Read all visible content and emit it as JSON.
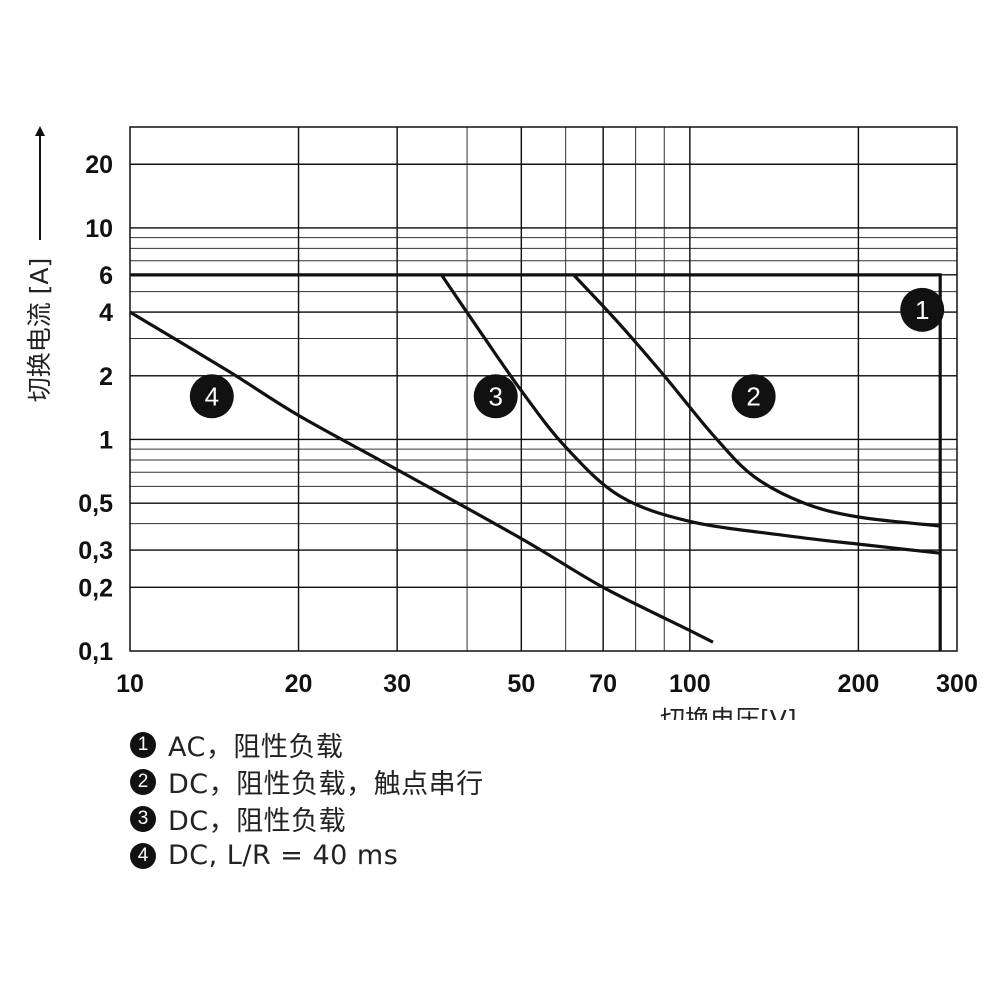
{
  "chart_data": {
    "type": "line",
    "xlabel": "切换电压[V]",
    "ylabel": "切换电流 [A]",
    "x_scale": "log",
    "y_scale": "log",
    "xlim": [
      10,
      300
    ],
    "ylim": [
      0.1,
      30
    ],
    "x_ticks": [
      10,
      20,
      30,
      50,
      70,
      100,
      200,
      300
    ],
    "x_tick_labels": [
      "10",
      "20",
      "30",
      "50",
      "70",
      "100",
      "200",
      "300"
    ],
    "y_ticks": [
      0.1,
      0.2,
      0.3,
      0.5,
      1,
      2,
      4,
      6,
      10,
      20
    ],
    "y_tick_labels": [
      "0,1",
      "0,2",
      "0,3",
      "0,5",
      "1",
      "2",
      "4",
      "6",
      "10",
      "20"
    ],
    "grid": true,
    "series": [
      {
        "id": "1",
        "x": [
          10,
          280,
          280
        ],
        "y": [
          6,
          6,
          0.1
        ]
      },
      {
        "id": "2",
        "x": [
          62,
          75,
          90,
          110,
          130,
          160,
          200,
          280
        ],
        "y": [
          6,
          3.5,
          2,
          1.05,
          0.67,
          0.5,
          0.43,
          0.39
        ]
      },
      {
        "id": "3",
        "x": [
          36,
          42,
          50,
          60,
          75,
          100,
          150,
          200,
          280
        ],
        "y": [
          6,
          3.3,
          1.7,
          0.92,
          0.54,
          0.41,
          0.35,
          0.32,
          0.29
        ]
      },
      {
        "id": "4",
        "x": [
          10,
          15,
          20,
          30,
          50,
          70,
          100,
          110
        ],
        "y": [
          4,
          2.1,
          1.3,
          0.72,
          0.34,
          0.2,
          0.125,
          0.11
        ]
      }
    ],
    "annotations": [
      {
        "label": "1",
        "x": 260,
        "y": 4.1
      },
      {
        "label": "2",
        "x": 130,
        "y": 1.6
      },
      {
        "label": "3",
        "x": 45,
        "y": 1.6
      },
      {
        "label": "4",
        "x": 14,
        "y": 1.6
      }
    ]
  },
  "legend": [
    {
      "badge": "1",
      "text": "AC，阻性负载"
    },
    {
      "badge": "2",
      "text": "DC，阻性负载，触点串行"
    },
    {
      "badge": "3",
      "text": "DC，阻性负载"
    },
    {
      "badge": "4",
      "text": "DC, L/R = 40 ms"
    }
  ]
}
